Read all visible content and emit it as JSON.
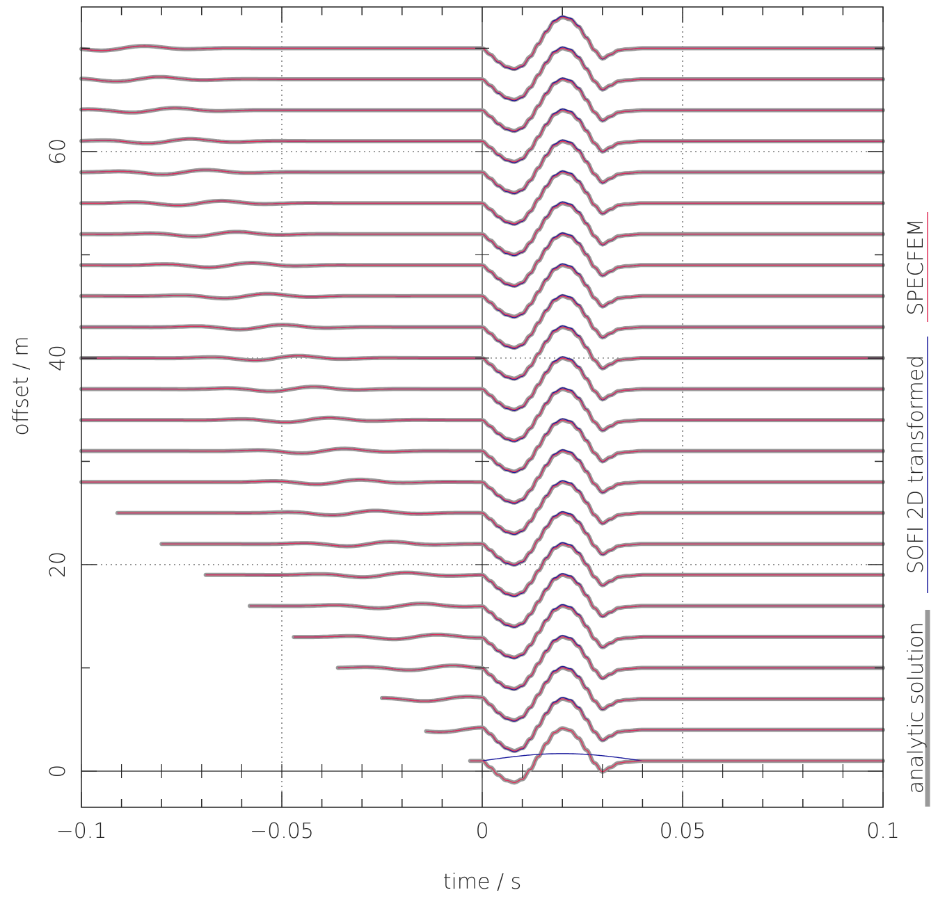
{
  "chart_data": {
    "type": "line",
    "title": "",
    "xlabel": "time / s",
    "ylabel": "offset / m",
    "xlim": [
      -0.1,
      0.1
    ],
    "ylim": [
      -3.5,
      74
    ],
    "x_ticks": [
      -0.1,
      -0.05,
      0,
      0.05,
      0.1
    ],
    "x_tick_labels": [
      "−0.1",
      "−0.05",
      "0",
      "0.05",
      "0.1"
    ],
    "y_ticks": [
      0,
      20,
      40,
      60
    ],
    "y_tick_labels": [
      "0",
      "20",
      "40",
      "60"
    ],
    "grid": "dotted",
    "legend_placement": "right, vertical",
    "trace_offsets": [
      1,
      4,
      7,
      10,
      13,
      16,
      19,
      22,
      25,
      28,
      31,
      34,
      37,
      40,
      43,
      46,
      49,
      52,
      55,
      58,
      61,
      64,
      67,
      70
    ],
    "trace_start_times": [
      -0.003,
      -0.014,
      -0.025,
      -0.036,
      -0.047,
      -0.058,
      -0.069,
      -0.08,
      -0.091,
      -0.1,
      -0.1,
      -0.1,
      -0.1,
      -0.1,
      -0.1,
      -0.1,
      -0.1,
      -0.1,
      -0.1,
      -0.1,
      -0.1,
      -0.1,
      -0.1,
      -0.1
    ],
    "wavelet": {
      "times": [
        0,
        0.002,
        0.004,
        0.006,
        0.008,
        0.01,
        0.012,
        0.014,
        0.016,
        0.018,
        0.02,
        0.022,
        0.024,
        0.026,
        0.028,
        0.03,
        0.032,
        0.034,
        0.036,
        0.04
      ],
      "amplitudes": [
        0,
        -0.6,
        -1.3,
        -1.8,
        -2.0,
        -1.7,
        -0.8,
        0.4,
        1.6,
        2.6,
        3.0,
        2.8,
        2.1,
        1.0,
        -0.2,
        -1.0,
        -0.6,
        -0.2,
        -0.1,
        0
      ]
    },
    "series": [
      {
        "name": "analytic solution",
        "color": "#999999"
      },
      {
        "name": "SOFI 2D transformed",
        "color": "#1a1a9c"
      },
      {
        "name": "SPECFEM",
        "color": "#e0305a"
      }
    ]
  }
}
